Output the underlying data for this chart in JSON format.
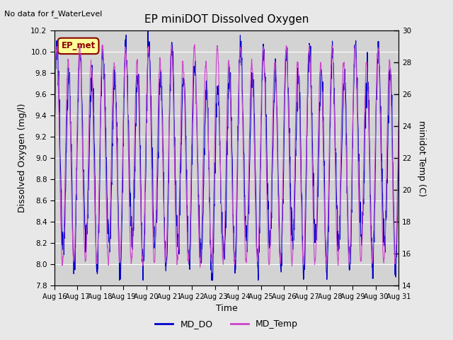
{
  "title": "EP miniDOT Dissolved Oxygen",
  "top_left_text": "No data for f_WaterLevel",
  "annotation_text": "EP_met",
  "xlabel": "Time",
  "ylabel_left": "Dissolved Oxygen (mg/l)",
  "ylabel_right": "minidot Temp (C)",
  "left_ylim": [
    7.8,
    10.2
  ],
  "right_ylim": [
    14,
    30
  ],
  "x_tick_labels": [
    "Aug 16",
    "Aug 17",
    "Aug 18",
    "Aug 19",
    "Aug 20",
    "Aug 21",
    "Aug 22",
    "Aug 23",
    "Aug 24",
    "Aug 25",
    "Aug 26",
    "Aug 27",
    "Aug 28",
    "Aug 29",
    "Aug 30",
    "Aug 31"
  ],
  "do_color": "#0000cc",
  "temp_color": "#cc44cc",
  "legend_do": "MD_DO",
  "legend_temp": "MD_Temp",
  "bg_color": "#e8e8e8",
  "plot_bg_color": "#d3d3d3",
  "grid_color": "#ffffff",
  "annotation_bg": "#ffff99",
  "annotation_border": "#8b0000",
  "annotation_text_color": "#8b0000"
}
